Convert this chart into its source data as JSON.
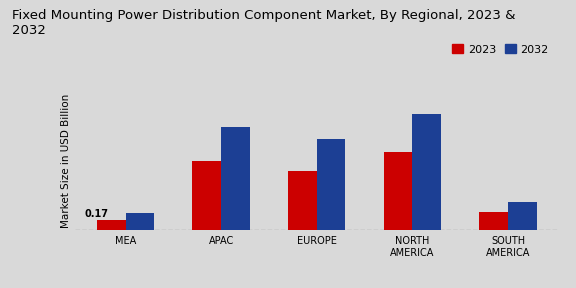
{
  "title": "Fixed Mounting Power Distribution Component Market, By Regional, 2023 &\n2032",
  "ylabel": "Market Size in USD Billion",
  "categories": [
    "MEA",
    "APAC",
    "EUROPE",
    "NORTH\nAMERICA",
    "SOUTH\nAMERICA"
  ],
  "values_2023": [
    0.17,
    1.1,
    0.95,
    1.25,
    0.3
  ],
  "values_2032": [
    0.28,
    1.65,
    1.45,
    1.85,
    0.45
  ],
  "color_2023": "#cc0000",
  "color_2032": "#1c3f94",
  "annotation_label": "0.17",
  "annotation_index": 0,
  "background_color": "#d9d9d9",
  "legend_labels": [
    "2023",
    "2032"
  ],
  "bar_width": 0.3,
  "ylim": [
    0,
    2.2
  ],
  "title_fontsize": 9.5,
  "axis_fontsize": 7.5,
  "tick_fontsize": 7.0,
  "legend_fontsize": 8.0
}
